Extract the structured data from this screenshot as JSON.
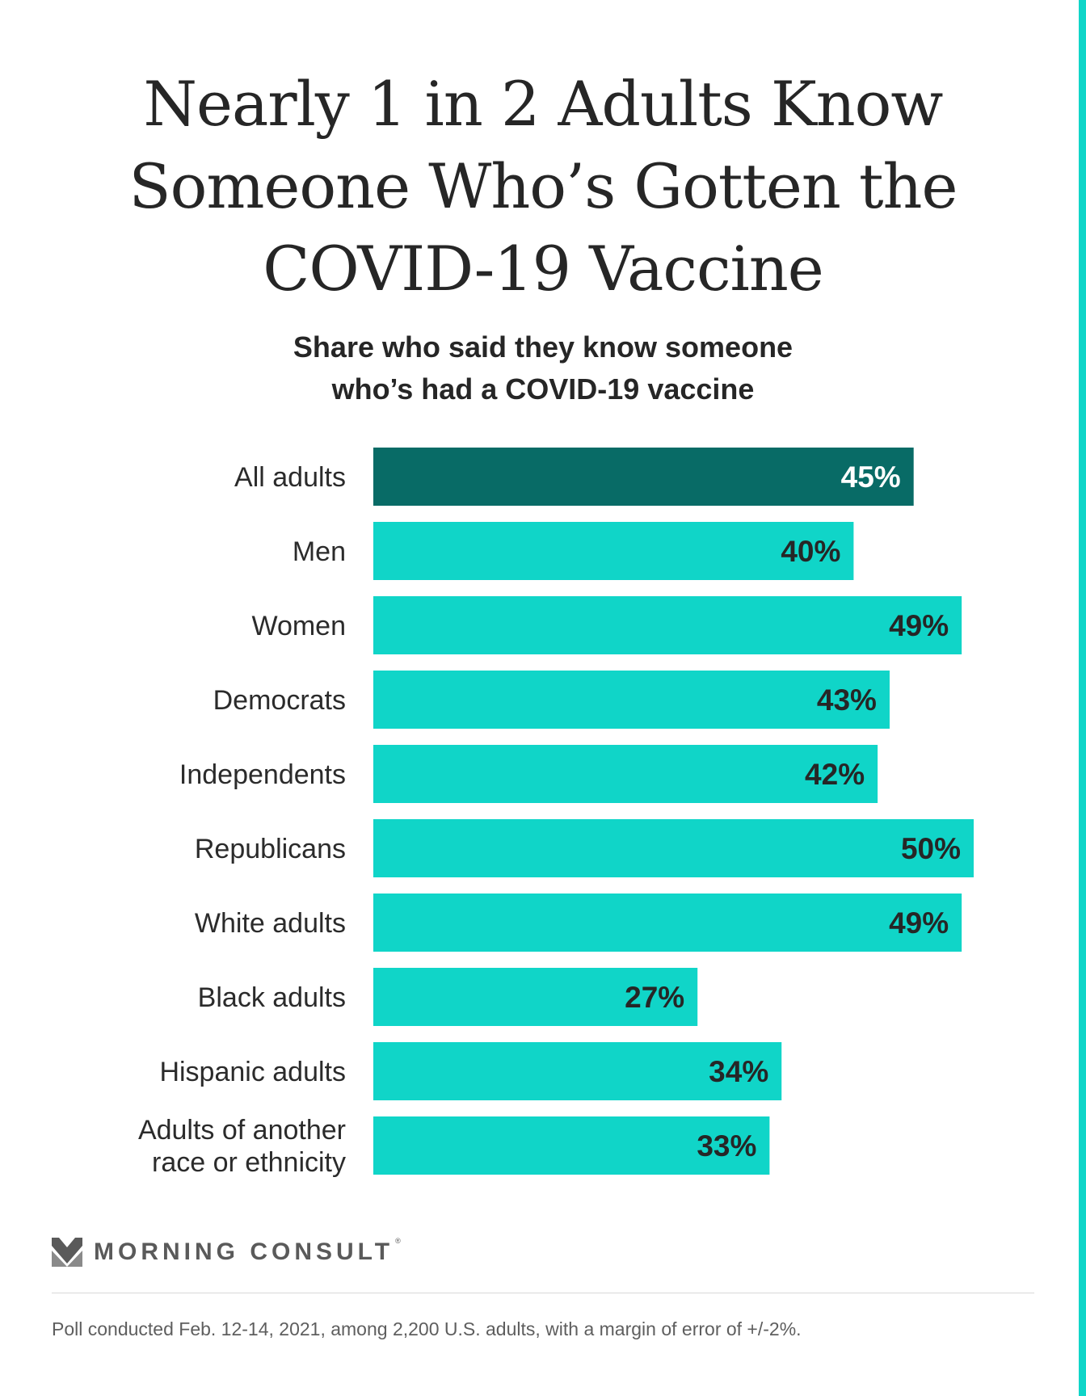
{
  "title_lines": [
    "Nearly 1 in 2 Adults Know",
    "Someone Who’s Gotten the",
    "COVID-19 Vaccine"
  ],
  "subtitle_lines": [
    "Share who said they know someone",
    "who’s had a COVID-19 vaccine"
  ],
  "colors": {
    "highlight_bar": "#086b66",
    "bar": "#10d5c8",
    "highlight_value_text": "#ffffff",
    "value_text": "#262626",
    "edge_strip": "#10d5c8"
  },
  "chart_data": {
    "type": "bar",
    "orientation": "horizontal",
    "title": "Nearly 1 in 2 Adults Know Someone Who’s Gotten the COVID-19 Vaccine",
    "subtitle": "Share who said they know someone who’s had a COVID-19 vaccine",
    "categories": [
      [
        "All adults"
      ],
      [
        "Men"
      ],
      [
        "Women"
      ],
      [
        "Democrats"
      ],
      [
        "Independents"
      ],
      [
        "Republicans"
      ],
      [
        "White adults"
      ],
      [
        "Black adults"
      ],
      [
        "Hispanic adults"
      ],
      [
        "Adults of another",
        "race or ethnicity"
      ]
    ],
    "values": [
      45,
      40,
      49,
      43,
      42,
      50,
      49,
      27,
      34,
      33
    ],
    "value_labels": [
      "45%",
      "40%",
      "49%",
      "43%",
      "42%",
      "50%",
      "49%",
      "27%",
      "34%",
      "33%"
    ],
    "unit": "%",
    "highlight_index": 0,
    "xlim": [
      0,
      50
    ],
    "grid": false,
    "legend": "none"
  },
  "brand": {
    "name": "MORNING CONSULT",
    "registered_mark": "®",
    "logo_icon": "morning-consult-chevron-logo"
  },
  "footnote": "Poll conducted Feb. 12-14, 2021, among 2,200 U.S. adults, with a margin of error of +/-2%."
}
